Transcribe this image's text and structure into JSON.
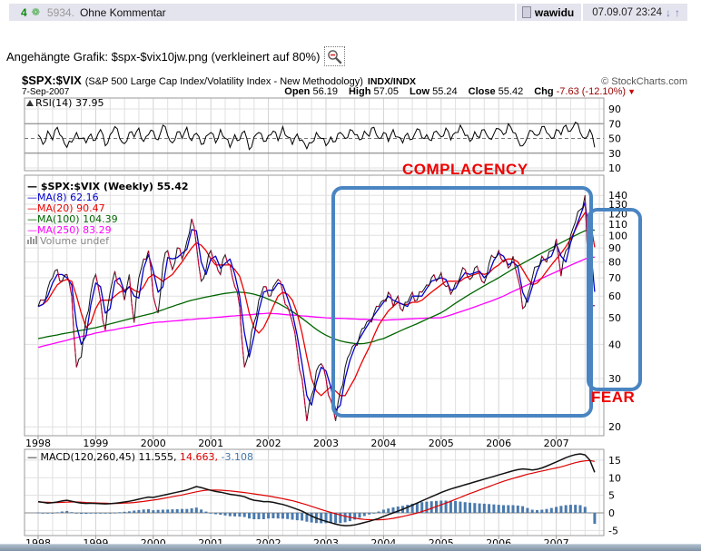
{
  "post_header": {
    "score": "4",
    "post_number": "5934.",
    "title": "Ohne Kommentar",
    "username": "wawidu",
    "timestamp": "07.09.07 23:24",
    "nav_down": "↓",
    "nav_up": "↑",
    "rating_icon_glyph": "❁"
  },
  "attachment": {
    "label": "Angehängte Grafik: $spx-$vix10jw.png (verkleinert auf 80%)"
  },
  "chart": {
    "symbol": "$SPX:$VIX",
    "description": "(S&P 500 Large Cap Index/Volatility Index - New Methodology)",
    "exchange": "INDX/INDX",
    "source": "© StockCharts.com",
    "date": "7-Sep-2007",
    "quote": {
      "open_label": "Open",
      "open": "56.19",
      "high_label": "High",
      "high": "57.05",
      "low_label": "Low",
      "low": "55.24",
      "close_label": "Close",
      "close": "55.42",
      "chg_label": "Chg",
      "chg": "-7.63 (-12.10%)",
      "chg_arrow": "▼"
    },
    "annotations": {
      "complacency": "COMPLACENCY",
      "fear": "FEAR"
    }
  },
  "chart_data": {
    "type": "line",
    "title": "$SPX:$VIX weekly ratio 1998-2007 with RSI and MACD panels",
    "x_start_year": 1998,
    "points_per_year": 12,
    "x_ticks": [
      "1998",
      "1999",
      "2000",
      "2001",
      "2002",
      "2003",
      "2004",
      "2005",
      "2006",
      "2007"
    ],
    "rsi_panel": {
      "label": "RSI(14) 37.95",
      "ticks": [
        90,
        70,
        50,
        30,
        10
      ],
      "ref_lines": {
        "solid": [
          70,
          30
        ],
        "dashed": [
          50
        ]
      },
      "values": [
        55,
        42,
        60,
        48,
        65,
        52,
        38,
        45,
        58,
        50,
        44,
        56,
        48,
        62,
        40,
        55,
        66,
        50,
        43,
        58,
        52,
        64,
        46,
        55,
        60,
        48,
        68,
        54,
        44,
        59,
        50,
        65,
        47,
        57,
        42,
        53,
        58,
        44,
        62,
        50,
        38,
        55,
        48,
        60,
        35,
        52,
        58,
        46,
        54,
        60,
        47,
        66,
        52,
        42,
        56,
        48,
        36,
        44,
        58,
        50,
        40,
        52,
        46,
        58,
        50,
        62,
        55,
        48,
        60,
        53,
        65,
        50,
        58,
        46,
        62,
        52,
        44,
        57,
        49,
        63,
        51,
        55,
        47,
        60,
        52,
        64,
        48,
        58,
        68,
        54,
        46,
        59,
        51,
        62,
        50,
        56,
        63,
        55,
        70,
        58,
        48,
        40,
        52,
        60,
        54,
        66,
        58,
        50,
        62,
        55,
        68,
        60,
        72,
        58,
        50,
        62,
        38
      ]
    },
    "price_panel": {
      "scale": "log",
      "ticks": [
        140,
        130,
        120,
        110,
        100,
        90,
        80,
        70,
        60,
        50,
        40,
        30,
        20
      ],
      "legend": [
        {
          "text": "— $SPX:$VIX (Weekly) 55.42",
          "color": "#000000"
        },
        {
          "text": "—MA(8) 62.16",
          "color": "#0000cc"
        },
        {
          "text": "—MA(20) 90.47",
          "color": "#ee0000"
        },
        {
          "text": "—MA(100) 104.39",
          "color": "#006600"
        },
        {
          "text": "—MA(250) 83.29",
          "color": "#ff00ff"
        },
        {
          "text": "Volume undef",
          "color": "#888888"
        }
      ],
      "price": [
        55,
        58,
        64,
        70,
        75,
        68,
        72,
        60,
        33,
        36,
        50,
        62,
        72,
        58,
        45,
        62,
        74,
        66,
        58,
        72,
        48,
        70,
        82,
        88,
        60,
        52,
        78,
        88,
        75,
        90,
        82,
        95,
        115,
        92,
        68,
        75,
        88,
        80,
        72,
        85,
        78,
        65,
        55,
        33,
        38,
        48,
        58,
        65,
        60,
        65,
        69,
        62,
        55,
        48,
        38,
        30,
        21,
        26,
        32,
        34,
        30,
        25,
        21,
        27,
        33,
        37,
        40,
        43,
        46,
        49,
        52,
        55,
        58,
        62,
        55,
        60,
        53,
        57,
        62,
        58,
        62,
        66,
        70,
        68,
        73,
        65,
        61,
        67,
        71,
        75,
        69,
        76,
        72,
        67,
        79,
        83,
        88,
        80,
        76,
        84,
        70,
        54,
        60,
        70,
        77,
        84,
        80,
        88,
        97,
        71,
        88,
        100,
        112,
        124,
        140,
        52,
        55.4
      ],
      "ma8": [
        55,
        56,
        60,
        67,
        72,
        72,
        70,
        66,
        47,
        40,
        43,
        56,
        67,
        65,
        52,
        54,
        68,
        70,
        62,
        65,
        60,
        59,
        76,
        85,
        74,
        62,
        65,
        83,
        82,
        83,
        86,
        89,
        105,
        104,
        80,
        72,
        82,
        84,
        76,
        79,
        82,
        72,
        60,
        44,
        36,
        43,
        53,
        62,
        63,
        63,
        67,
        66,
        59,
        52,
        43,
        34,
        26,
        24,
        29,
        33,
        32,
        28,
        23,
        24,
        30,
        35,
        39,
        42,
        45,
        48,
        51,
        54,
        57,
        60,
        58,
        57,
        56,
        55,
        60,
        60,
        60,
        64,
        68,
        69,
        70,
        69,
        63,
        64,
        69,
        73,
        72,
        73,
        74,
        70,
        73,
        81,
        86,
        84,
        78,
        80,
        77,
        62,
        57,
        65,
        74,
        81,
        82,
        84,
        93,
        84,
        80,
        94,
        106,
        118,
        132,
        96,
        62.2
      ],
      "ma20": [
        55,
        56,
        58,
        62,
        66,
        68,
        69,
        68,
        60,
        52,
        46,
        48,
        54,
        58,
        58,
        58,
        60,
        62,
        63,
        65,
        63,
        62,
        65,
        70,
        72,
        70,
        68,
        70,
        72,
        76,
        80,
        85,
        90,
        94,
        92,
        88,
        82,
        78,
        78,
        78,
        78,
        75,
        71,
        62,
        52,
        46,
        44,
        46,
        50,
        55,
        60,
        62,
        61,
        58,
        52,
        44,
        36,
        30,
        27,
        26,
        27,
        28,
        27,
        26,
        26,
        28,
        30,
        33,
        36,
        39,
        43,
        47,
        50,
        53,
        55,
        57,
        56,
        56,
        57,
        57,
        58,
        60,
        62,
        64,
        66,
        68,
        68,
        68,
        68,
        70,
        71,
        72,
        73,
        72,
        73,
        76,
        78,
        81,
        82,
        82,
        80,
        75,
        70,
        66,
        67,
        70,
        74,
        78,
        82,
        86,
        91,
        97,
        105,
        114,
        121,
        115,
        90.5
      ],
      "ma100": [
        42,
        42.3,
        42.7,
        43,
        43.3,
        43.7,
        44,
        44.3,
        44.7,
        45,
        45.3,
        45.7,
        46,
        46.5,
        47,
        47.5,
        48,
        48.5,
        49,
        49.5,
        50,
        50.5,
        51,
        51.5,
        52,
        52.8,
        53.5,
        54.3,
        55,
        55.8,
        56.5,
        57.3,
        58,
        58.5,
        59,
        59.5,
        60,
        60.5,
        61,
        61.4,
        61.7,
        62,
        62,
        61.8,
        61.5,
        61,
        60.3,
        59.5,
        58.5,
        57.5,
        56.5,
        55.3,
        54,
        52.7,
        51.3,
        49.8,
        48.3,
        46.8,
        45.4,
        44.2,
        43.2,
        42.4,
        41.7,
        41.2,
        40.8,
        40.5,
        40.3,
        40.2,
        40.3,
        40.6,
        41,
        41.6,
        42,
        42.8,
        43.6,
        44.4,
        45.2,
        46,
        46.8,
        47.6,
        48.5,
        49.4,
        50.3,
        51.2,
        52.2,
        53.5,
        55,
        56.5,
        58,
        59.5,
        61,
        62.5,
        64,
        65.5,
        67,
        68.5,
        70,
        71.8,
        73.6,
        75.4,
        77.2,
        79,
        80.8,
        82.6,
        84.4,
        86.2,
        88,
        90,
        92,
        94,
        96,
        98,
        100,
        102,
        104,
        105,
        104.4
      ],
      "ma250": [
        39,
        39.4,
        39.8,
        40.2,
        40.6,
        41,
        41.4,
        41.9,
        42.3,
        42.7,
        43.1,
        43.5,
        44,
        44.3,
        44.7,
        45,
        45.3,
        45.7,
        46,
        46.3,
        46.7,
        47,
        47.3,
        47.7,
        48,
        48.2,
        48.3,
        48.5,
        48.7,
        48.8,
        49,
        49.2,
        49.3,
        49.5,
        49.7,
        49.8,
        50,
        50.2,
        50.3,
        50.5,
        50.7,
        50.8,
        51,
        51.2,
        51.3,
        51.5,
        51.7,
        51.8,
        52,
        51.8,
        51.7,
        51.5,
        51.3,
        51.2,
        51,
        50.8,
        50.7,
        50.5,
        50.3,
        50.2,
        50,
        49.9,
        49.8,
        49.8,
        49.7,
        49.6,
        49.5,
        49.4,
        49.4,
        49.3,
        49.2,
        49.1,
        49,
        49.1,
        49.2,
        49.3,
        49.4,
        49.5,
        49.6,
        49.7,
        49.8,
        49.9,
        49.95,
        50,
        50,
        50.6,
        51.2,
        51.9,
        52.6,
        53.3,
        54,
        54.8,
        55.6,
        56.4,
        57.2,
        58.1,
        59,
        60,
        61.2,
        62.4,
        63.6,
        64.8,
        66,
        67.2,
        68.4,
        69.7,
        71,
        72.3,
        73.6,
        75,
        76.4,
        77.8,
        79.2,
        80.6,
        82,
        83,
        83.3
      ]
    },
    "macd_panel": {
      "ticks": [
        15,
        10,
        5,
        0,
        -5
      ],
      "legend_parts": [
        {
          "text": "— MACD(120,260,45) 11.555,",
          "color": "#000000"
        },
        {
          "text": " 14.663,",
          "color": "#dd0000"
        },
        {
          "text": " -3.108",
          "color": "#4477aa"
        }
      ],
      "macd": [
        3.2,
        3,
        2.8,
        2.9,
        3.1,
        3.4,
        3.6,
        3.3,
        3,
        2.8,
        2.7,
        2.75,
        2.7,
        2.6,
        2.55,
        2.6,
        2.75,
        2.9,
        3.1,
        3.3,
        3.6,
        3.9,
        4.2,
        4.5,
        4.4,
        4.7,
        5,
        5.3,
        5.6,
        5.9,
        6.2,
        6.5,
        7,
        7.5,
        7.2,
        6.8,
        6.4,
        6.1,
        5.9,
        5.6,
        5.3,
        5.1,
        4.9,
        4.6,
        4,
        3.6,
        3.4,
        3.2,
        3.2,
        3,
        2.7,
        2.4,
        2,
        1.5,
        1,
        0.5,
        -0.2,
        -0.9,
        -1.5,
        -2,
        -2.4,
        -2.8,
        -3.2,
        -3.5,
        -3.65,
        -3.6,
        -3.4,
        -3.1,
        -2.75,
        -2.4,
        -2,
        -1.6,
        -1,
        -0.5,
        0,
        0.5,
        1,
        1.6,
        2.2,
        2.8,
        3.4,
        4,
        4.6,
        5.2,
        5.8,
        6.3,
        6.8,
        7.2,
        7.6,
        8,
        8.4,
        8.8,
        9.2,
        9.6,
        10,
        10.4,
        10.8,
        11.2,
        11.6,
        12,
        12.3,
        12.5,
        12.4,
        12.2,
        12.4,
        12.8,
        13.3,
        13.9,
        14.5,
        15.1,
        15.7,
        16.2,
        16.6,
        16.8,
        16.5,
        15,
        11.56
      ],
      "signal": [
        3.1,
        3.05,
        3,
        2.95,
        2.95,
        3,
        3.05,
        3.1,
        3.1,
        3.05,
        2.95,
        2.9,
        2.85,
        2.8,
        2.75,
        2.7,
        2.7,
        2.72,
        2.78,
        2.85,
        2.95,
        3.1,
        3.25,
        3.45,
        3.65,
        3.85,
        4.1,
        4.35,
        4.6,
        4.85,
        5.1,
        5.4,
        5.7,
        6,
        6.25,
        6.45,
        6.5,
        6.5,
        6.45,
        6.35,
        6.25,
        6.1,
        5.95,
        5.8,
        5.6,
        5.4,
        5.2,
        5,
        4.8,
        4.55,
        4.3,
        4.05,
        3.75,
        3.45,
        3.1,
        2.7,
        2.3,
        1.85,
        1.4,
        0.95,
        0.55,
        0.15,
        -0.25,
        -0.6,
        -0.95,
        -1.25,
        -1.5,
        -1.7,
        -1.85,
        -1.95,
        -2,
        -2,
        -1.9,
        -1.75,
        -1.55,
        -1.3,
        -1,
        -0.7,
        -0.4,
        -0.05,
        0.35,
        0.8,
        1.3,
        1.8,
        2.3,
        2.8,
        3.3,
        3.85,
        4.4,
        4.95,
        5.5,
        6,
        6.5,
        7,
        7.5,
        8,
        8.5,
        9,
        9.4,
        9.8,
        10.2,
        10.6,
        11,
        11.3,
        11.6,
        11.9,
        12.2,
        12.5,
        12.8,
        13.1,
        13.5,
        13.9,
        14.3,
        14.6,
        14.8,
        14.9,
        14.66
      ],
      "histogram": "macd_minus_signal"
    },
    "colors": {
      "price": "#111111",
      "price_down": "#cc0033",
      "ma8": "#0000cc",
      "ma20": "#ee0000",
      "ma100": "#006600",
      "ma250": "#ff00ff",
      "macd": "#111111",
      "signal": "#dd0000",
      "hist": "#4a7aad",
      "grid": "#e0e0e0",
      "grid_year": "#d2d2d2",
      "border": "#999999",
      "annotation_box": "#4a85c2",
      "annotation_text": "#ee0000"
    }
  }
}
